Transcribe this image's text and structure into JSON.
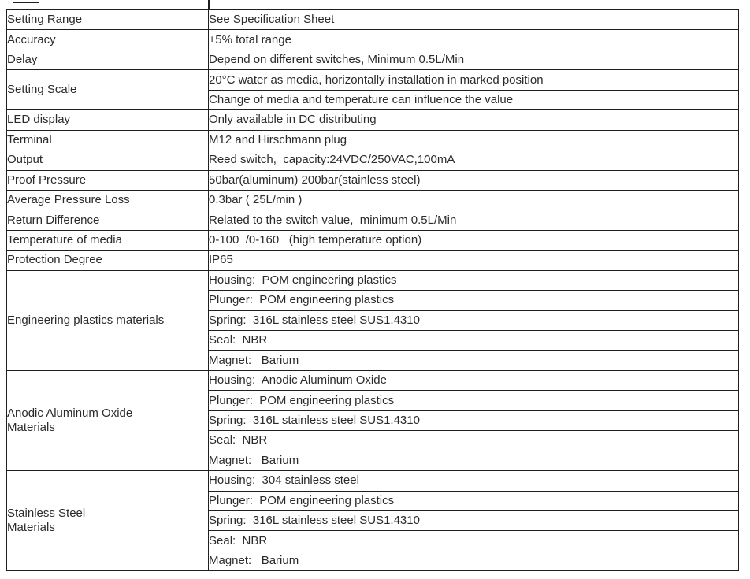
{
  "table": {
    "groups": [
      {
        "label": "Setting Range",
        "values": [
          "See Specification Sheet"
        ]
      },
      {
        "label": "Accuracy",
        "values": [
          "±5% total range"
        ]
      },
      {
        "label": "Delay",
        "values": [
          "Depend on different switches, Minimum 0.5L/Min"
        ]
      },
      {
        "label": "Setting Scale",
        "values": [
          "20°C water as media, horizontally installation in marked position",
          "Change of media and temperature can influence the value"
        ]
      },
      {
        "label": "LED display",
        "values": [
          "Only available in DC distributing"
        ]
      },
      {
        "label": "Terminal",
        "values": [
          "M12 and Hirschmann plug"
        ]
      },
      {
        "label": "Output",
        "values": [
          "Reed switch,  capacity:24VDC/250VAC,100mA"
        ]
      },
      {
        "label": "Proof Pressure",
        "values": [
          "50bar(aluminum) 200bar(stainless steel)"
        ]
      },
      {
        "label": "Average Pressure Loss",
        "values": [
          "0.3bar ( 25L/min )"
        ]
      },
      {
        "label": "Return Difference",
        "values": [
          "Related to the switch value,  minimum 0.5L/Min"
        ]
      },
      {
        "label": "Temperature of media",
        "values": [
          "0-100  /0-160   (high temperature option)"
        ]
      },
      {
        "label": "Protection Degree",
        "values": [
          "IP65"
        ]
      },
      {
        "label": "Engineering plastics materials",
        "values": [
          "Housing:  POM engineering plastics",
          "Plunger:  POM engineering plastics",
          "Spring:  316L stainless steel SUS1.4310",
          "Seal:  NBR",
          "Magnet:   Barium"
        ]
      },
      {
        "label": "Anodic Aluminum Oxide\nMaterials",
        "values": [
          "Housing:  Anodic Aluminum Oxide",
          "Plunger:  POM engineering plastics",
          "Spring:  316L stainless steel SUS1.4310",
          "Seal:  NBR",
          "Magnet:   Barium"
        ]
      },
      {
        "label": "Stainless Steel\nMaterials",
        "values": [
          "Housing:  304 stainless steel",
          "Plunger:  POM engineering plastics",
          "Spring:  316L stainless steel SUS1.4310",
          "Seal:  NBR",
          "Magnet:   Barium"
        ]
      }
    ]
  }
}
